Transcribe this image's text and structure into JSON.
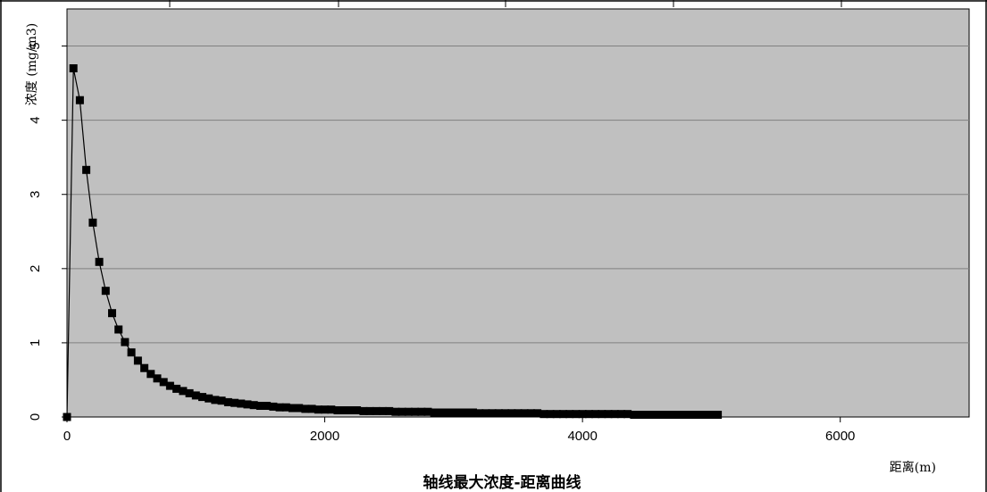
{
  "chart_data": {
    "type": "line",
    "title": "轴线最大浓度-距离曲线",
    "xlabel": "距离(m)",
    "ylabel": "浓度 (mg/m3)",
    "xlim": [
      0,
      7000
    ],
    "ylim": [
      0,
      5.5
    ],
    "xticks": [
      0,
      2000,
      4000,
      6000
    ],
    "yticks": [
      0,
      1,
      2,
      3,
      4,
      5
    ],
    "grid": "horizontal",
    "legend": "none",
    "colors": {
      "plot_background": "#c0c0c0",
      "line": "#000000",
      "marker": "#000000",
      "gridline": "#808080"
    },
    "series": [
      {
        "marker": "square",
        "x": [
          0,
          50,
          100,
          150,
          200,
          250,
          300,
          350,
          400,
          450,
          500,
          550,
          600,
          650,
          700,
          750,
          800,
          850,
          900,
          950,
          1000,
          1050,
          1100,
          1150,
          1200,
          1250,
          1300,
          1350,
          1400,
          1450,
          1500,
          1550,
          1600,
          1650,
          1700,
          1750,
          1800,
          1850,
          1900,
          1950,
          2000,
          2050,
          2100,
          2150,
          2200,
          2250,
          2300,
          2350,
          2400,
          2450,
          2500,
          2550,
          2600,
          2650,
          2700,
          2750,
          2800,
          2850,
          2900,
          2950,
          3000,
          3050,
          3100,
          3150,
          3200,
          3250,
          3300,
          3350,
          3400,
          3450,
          3500,
          3550,
          3600,
          3650,
          3700,
          3750,
          3800,
          3850,
          3900,
          3950,
          4000,
          4050,
          4100,
          4150,
          4200,
          4250,
          4300,
          4350,
          4400,
          4450,
          4500,
          4550,
          4600,
          4650,
          4700,
          4750,
          4800,
          4850,
          4900,
          4950,
          5000,
          5050
        ],
        "y": [
          0,
          4.7,
          4.27,
          3.33,
          2.62,
          2.09,
          1.7,
          1.4,
          1.18,
          1.01,
          0.87,
          0.76,
          0.66,
          0.58,
          0.52,
          0.47,
          0.42,
          0.38,
          0.35,
          0.32,
          0.29,
          0.27,
          0.25,
          0.23,
          0.22,
          0.2,
          0.19,
          0.18,
          0.17,
          0.16,
          0.15,
          0.15,
          0.14,
          0.13,
          0.13,
          0.12,
          0.12,
          0.11,
          0.11,
          0.1,
          0.1,
          0.1,
          0.09,
          0.09,
          0.09,
          0.09,
          0.08,
          0.08,
          0.08,
          0.08,
          0.08,
          0.07,
          0.07,
          0.07,
          0.07,
          0.07,
          0.07,
          0.06,
          0.06,
          0.06,
          0.06,
          0.06,
          0.06,
          0.06,
          0.05,
          0.05,
          0.05,
          0.05,
          0.05,
          0.05,
          0.05,
          0.05,
          0.05,
          0.05,
          0.04,
          0.04,
          0.04,
          0.04,
          0.04,
          0.04,
          0.04,
          0.04,
          0.04,
          0.04,
          0.04,
          0.04,
          0.04,
          0.04,
          0.03,
          0.03,
          0.03,
          0.03,
          0.03,
          0.03,
          0.03,
          0.03,
          0.03,
          0.03,
          0.03,
          0.03,
          0.03,
          0.03
        ]
      }
    ]
  }
}
